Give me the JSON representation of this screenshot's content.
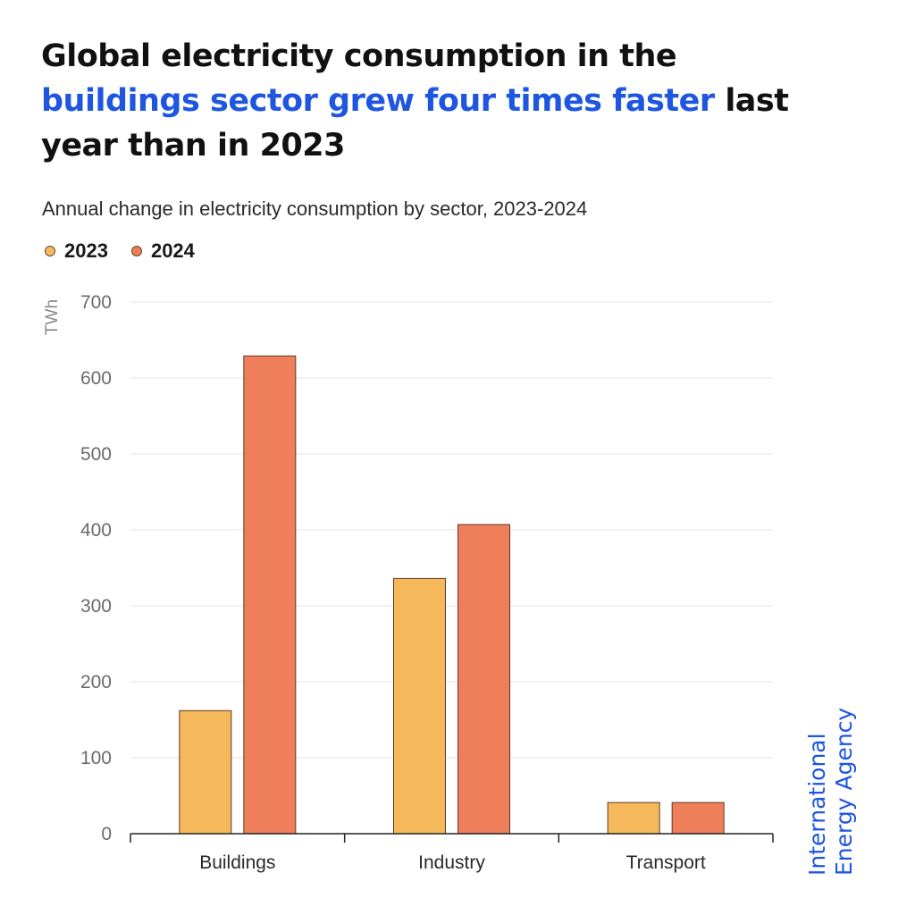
{
  "title": {
    "part1": "Global electricity consumption in the",
    "highlight": "buildings sector grew four times faster",
    "part2": "last year than in 2023",
    "highlight_color": "#1e56e0"
  },
  "brand": {
    "line1": "International",
    "line2": "Energy Agency",
    "color": "#1e56e0"
  },
  "chart_data": {
    "type": "bar",
    "subtitle": "Annual change in electricity consumption by sector, 2023-2024",
    "ylabel": "TWh",
    "xlabel": "",
    "ylim": [
      0,
      700
    ],
    "yticks": [
      0,
      100,
      200,
      300,
      400,
      500,
      600,
      700
    ],
    "grid": true,
    "legend_position": "top-left",
    "categories": [
      "Buildings",
      "Industry",
      "Transport"
    ],
    "series": [
      {
        "name": "2023",
        "color": "#f5b95c",
        "values": [
          162,
          336,
          41
        ]
      },
      {
        "name": "2024",
        "color": "#ef7f5a",
        "values": [
          629,
          407,
          41
        ]
      }
    ]
  }
}
